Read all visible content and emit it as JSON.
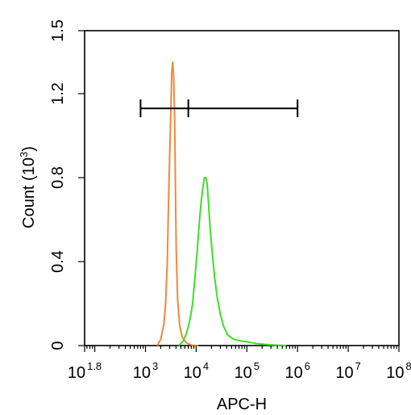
{
  "chart_data": {
    "type": "line",
    "xlabel": "APC-H",
    "ylabel": "Count (10",
    "ylabel_exponent": "3",
    "ylabel_close": ")",
    "x_scale": "log10",
    "xlim": [
      63,
      100000000
    ],
    "ylim": [
      0,
      1.5
    ],
    "grid": false,
    "x_ticks": [
      {
        "value": 63,
        "base": "10",
        "exp": "1.8"
      },
      {
        "value": 1000,
        "base": "10",
        "exp": "3"
      },
      {
        "value": 10000,
        "base": "10",
        "exp": "4"
      },
      {
        "value": 100000,
        "base": "10",
        "exp": "5"
      },
      {
        "value": 1000000,
        "base": "10",
        "exp": "6"
      },
      {
        "value": 10000000,
        "base": "10",
        "exp": "7"
      },
      {
        "value": 100000000,
        "base": "10",
        "exp": "8"
      }
    ],
    "y_ticks": [
      {
        "value": 0,
        "label": "0"
      },
      {
        "value": 0.4,
        "label": "0.4"
      },
      {
        "value": 0.8,
        "label": "0.8"
      },
      {
        "value": 1.2,
        "label": "1.2"
      },
      {
        "value": 1.5,
        "label": "1.5"
      }
    ],
    "series": [
      {
        "color": "#f0883a",
        "x": [
          1700,
          2000,
          2300,
          2500,
          2700,
          2850,
          3000,
          3150,
          3300,
          3450,
          3600,
          3750,
          3900,
          4050,
          4300,
          4700,
          5300,
          6300,
          7500,
          9000,
          11000
        ],
        "y": [
          0.0,
          0.03,
          0.1,
          0.2,
          0.4,
          0.68,
          0.9,
          1.1,
          1.3,
          1.35,
          1.28,
          1.1,
          0.75,
          0.45,
          0.22,
          0.1,
          0.04,
          0.015,
          0.005,
          0.0,
          0.0
        ]
      },
      {
        "color": "#3be024",
        "x": [
          4500,
          5500,
          6500,
          7500,
          8500,
          9500,
          10500,
          11500,
          12500,
          13500,
          14500,
          15500,
          16500,
          17500,
          19000,
          21000,
          23000,
          26000,
          30000,
          35000,
          42000,
          55000,
          75000,
          100000,
          150000,
          250000,
          400000,
          600000
        ],
        "y": [
          0.0,
          0.02,
          0.06,
          0.12,
          0.2,
          0.33,
          0.45,
          0.58,
          0.68,
          0.75,
          0.8,
          0.8,
          0.77,
          0.68,
          0.55,
          0.43,
          0.33,
          0.23,
          0.15,
          0.09,
          0.05,
          0.03,
          0.022,
          0.018,
          0.01,
          0.005,
          0.002,
          0.0
        ]
      }
    ],
    "gate": {
      "x_min": 800,
      "x_mid": 7000,
      "x_max": 1000000,
      "y": 1.13,
      "color": "#000000"
    }
  }
}
